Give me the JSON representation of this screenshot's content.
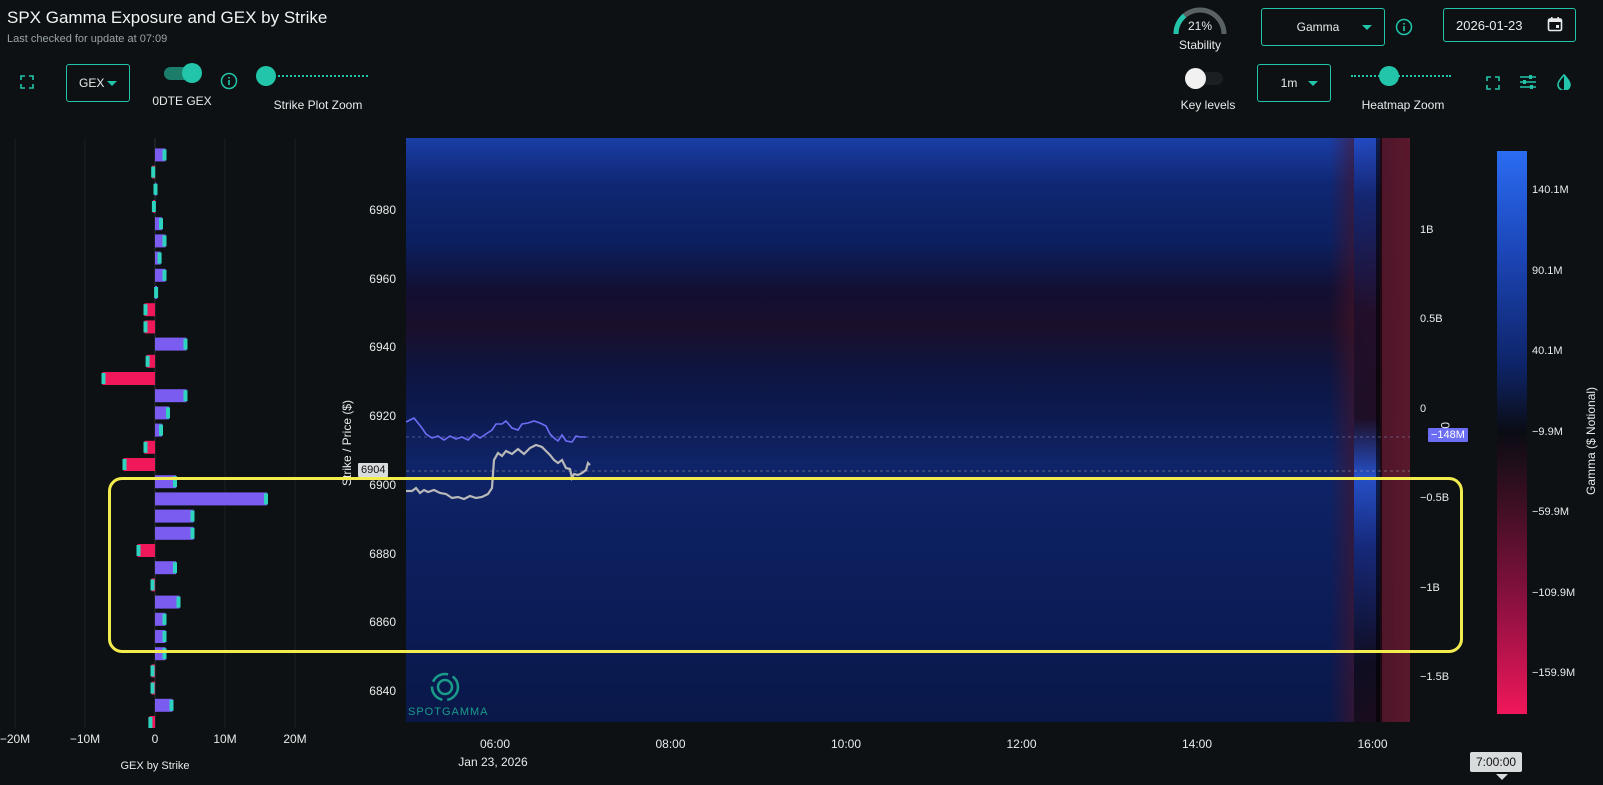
{
  "header": {
    "title": "SPX Gamma Exposure and GEX by Strike",
    "last_checked": "Last checked for update at 07:09"
  },
  "controls": {
    "gex_select": "GEX",
    "odte_label": "0DTE GEX",
    "strike_zoom_label": "Strike Plot Zoom",
    "stability_percent": "21%",
    "stability_value": 0.21,
    "stability_label": "Stability",
    "gamma_select": "Gamma",
    "date_value": "2026-01-23",
    "key_levels_label": "Key levels",
    "interval_select": "1m",
    "heatmap_zoom_label": "Heatmap Zoom"
  },
  "strike_chart": {
    "xaxis_ticks": [
      "−20M",
      "−10M",
      "0",
      "10M",
      "20M"
    ],
    "xlabel": "GEX by Strike"
  },
  "price_axis": {
    "ticks": [
      "6980",
      "6960",
      "6940",
      "6920",
      "6900",
      "6880",
      "6860",
      "6840"
    ],
    "label": "Strike / Price ($)",
    "current_price": "6904"
  },
  "time_axis": {
    "ticks": [
      "06:00",
      "08:00",
      "10:00",
      "12:00",
      "14:00",
      "16:00"
    ],
    "date": "Jan 23, 2026",
    "cursor_time": "7:00:00"
  },
  "right_axis": {
    "ticks": [
      "1B",
      "0.5B",
      "0",
      "−0.5B",
      "−1B",
      "−1.5B"
    ],
    "current_marker": "−148M",
    "partial_label": "0"
  },
  "colorbar": {
    "ticks": [
      "140.1M",
      "90.1M",
      "40.1M",
      "−9.9M",
      "−59.9M",
      "−109.9M",
      "−159.9M"
    ],
    "label": "Gamma ($ Notional)"
  },
  "watermark": "SPOTGAMMA",
  "colors": {
    "accent": "#22c5a9",
    "positive_bar": "#7b5cf0",
    "negative_bar": "#f0175a",
    "highlight_box": "#f3ec4f"
  },
  "chart_data": {
    "type": "bar",
    "title": "",
    "xlabel": "GEX by Strike",
    "ylabel": "Strike / Price ($)",
    "xlim": [
      -20,
      20
    ],
    "strikes": [
      6995,
      6990,
      6985,
      6980,
      6975,
      6970,
      6965,
      6960,
      6955,
      6950,
      6945,
      6940,
      6935,
      6930,
      6925,
      6920,
      6915,
      6910,
      6905,
      6900,
      6895,
      6890,
      6885,
      6880,
      6875,
      6870,
      6865,
      6860,
      6855,
      6850,
      6845,
      6840,
      6835,
      6830
    ],
    "values_millions": [
      1.5,
      -0.4,
      0.2,
      -0.3,
      1.0,
      1.5,
      0.8,
      1.5,
      0.3,
      -1.5,
      -1.5,
      4.5,
      -1.2,
      -7.5,
      4.5,
      2.0,
      1.0,
      -1.5,
      -4.5,
      3.0,
      16.0,
      5.5,
      5.5,
      -2.5,
      3.0,
      -0.5,
      3.5,
      1.5,
      1.5,
      1.5,
      -0.5,
      -0.5,
      2.5,
      -0.8
    ]
  }
}
